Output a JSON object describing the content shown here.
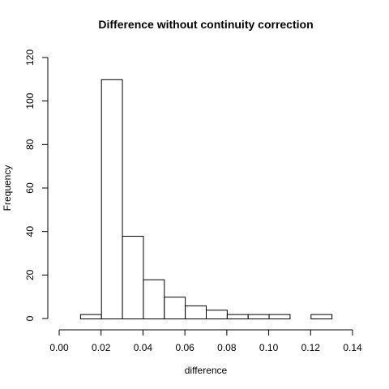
{
  "chart_data": {
    "type": "bar",
    "title": "Difference without continuity correction",
    "xlabel": "difference",
    "ylabel": "Frequency",
    "bin_edges": [
      0.01,
      0.02,
      0.03,
      0.04,
      0.05,
      0.06,
      0.07,
      0.08,
      0.09,
      0.1,
      0.11,
      0.12,
      0.13
    ],
    "values": [
      2,
      110,
      38,
      18,
      10,
      6,
      4,
      2,
      2,
      2,
      0,
      2
    ],
    "xlim": [
      0.0,
      0.14
    ],
    "ylim": [
      0,
      120
    ],
    "x_ticks": [
      0.0,
      0.02,
      0.04,
      0.06,
      0.08,
      0.1,
      0.12,
      0.14
    ],
    "x_tick_labels": [
      "0.00",
      "0.02",
      "0.04",
      "0.06",
      "0.08",
      "0.10",
      "0.12",
      "0.14"
    ],
    "y_ticks": [
      0,
      20,
      40,
      60,
      80,
      100,
      120
    ],
    "y_tick_labels": [
      "0",
      "20",
      "40",
      "60",
      "80",
      "100",
      "120"
    ],
    "grid": false,
    "colors": {
      "bar_fill": "#ffffff",
      "bar_stroke": "#000000"
    }
  }
}
